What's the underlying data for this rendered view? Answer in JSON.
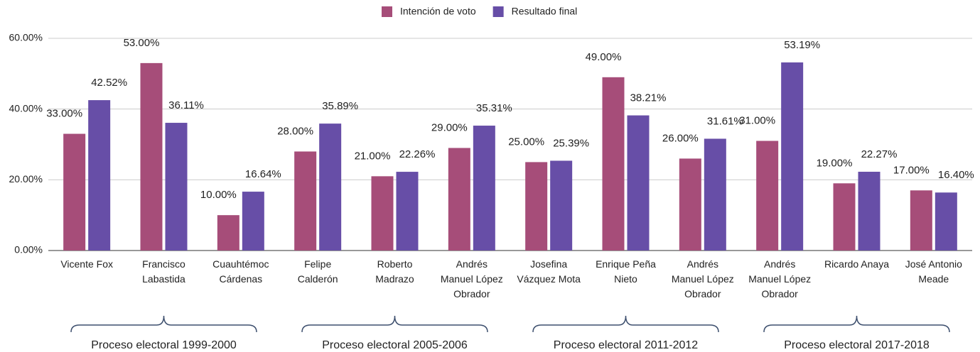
{
  "chart_data": {
    "type": "bar",
    "categories": [
      "Vicente Fox",
      "Francisco Labastida",
      "Cuauhtémoc Cárdenas",
      "Felipe Calderón",
      "Roberto Madrazo",
      "Andrés Manuel López Obrador",
      "Josefina Vázquez Mota",
      "Enrique Peña Nieto",
      "Andrés Manuel López Obrador",
      "Andrés Manuel López Obrador",
      "Ricardo Anaya",
      "José Antonio Meade"
    ],
    "series": [
      {
        "name": "Intención de voto",
        "color": "#a64d79",
        "values": [
          33,
          53,
          10,
          28,
          21,
          29,
          25,
          49,
          26,
          31,
          19,
          17
        ],
        "value_labels": [
          "33.00%",
          "53.00%",
          "10.00%",
          "28.00%",
          "21.00%",
          "29.00%",
          "25.00%",
          "49.00%",
          "26.00%",
          "31.00%",
          "19.00%",
          "17.00%"
        ]
      },
      {
        "name": "Resultado final",
        "color": "#674ea7",
        "values": [
          42.52,
          36.11,
          16.64,
          35.89,
          22.26,
          35.31,
          25.39,
          38.21,
          31.61,
          53.19,
          22.27,
          16.4
        ],
        "value_labels": [
          "42.52%",
          "36.11%",
          "16.64%",
          "35.89%",
          "22.26%",
          "35.31%",
          "25.39%",
          "38.21%",
          "31.61%",
          "53.19%",
          "22.27%",
          "16.40%"
        ]
      }
    ],
    "groups": [
      "Proceso electoral 1999-2000",
      "Proceso electoral 2005-2006",
      "Proceso electoral 2011-2012",
      "Proceso electoral 2017-2018"
    ],
    "ylim": [
      0,
      60
    ],
    "yticks": [
      {
        "value": 0,
        "label": "0.00%"
      },
      {
        "value": 20,
        "label": "20.00%"
      },
      {
        "value": 40,
        "label": "40.00%"
      },
      {
        "value": 60,
        "label": "60.00%"
      }
    ],
    "grid": true,
    "legend": "top"
  }
}
